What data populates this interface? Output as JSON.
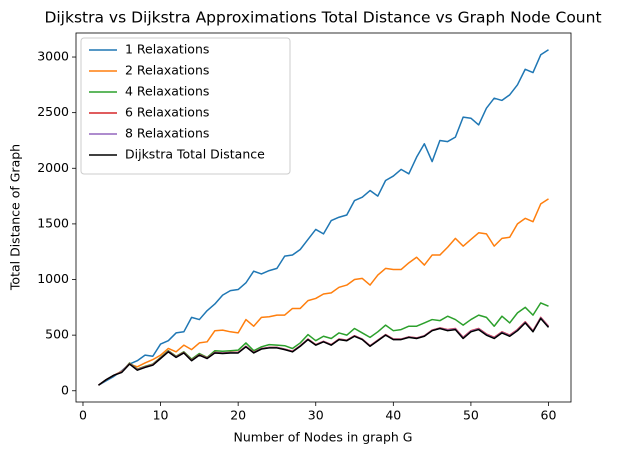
{
  "chart_data": {
    "type": "line",
    "title": "Dijkstra vs Dijkstra Approximations Total Distance vs Graph Node Count",
    "x_label": "Number of Nodes in graph G",
    "y_label": "Total Distance of Graph",
    "x": [
      2,
      3,
      4,
      5,
      6,
      7,
      8,
      9,
      10,
      11,
      12,
      13,
      14,
      15,
      16,
      17,
      18,
      19,
      20,
      21,
      22,
      23,
      24,
      25,
      26,
      27,
      28,
      29,
      30,
      31,
      32,
      33,
      34,
      35,
      36,
      37,
      38,
      39,
      40,
      41,
      42,
      43,
      44,
      45,
      46,
      47,
      48,
      49,
      50,
      51,
      52,
      53,
      54,
      55,
      56,
      57,
      58,
      59,
      60
    ],
    "series": [
      {
        "name": "1 Relaxations",
        "color": "#1f77b4",
        "values": [
          50,
          90,
          130,
          180,
          240,
          270,
          320,
          310,
          420,
          450,
          520,
          530,
          660,
          640,
          720,
          780,
          860,
          900,
          910,
          970,
          1075,
          1050,
          1080,
          1100,
          1210,
          1220,
          1270,
          1360,
          1450,
          1410,
          1530,
          1560,
          1580,
          1710,
          1740,
          1800,
          1750,
          1890,
          1930,
          1990,
          1950,
          2100,
          2220,
          2060,
          2250,
          2240,
          2280,
          2460,
          2450,
          2390,
          2540,
          2630,
          2610,
          2660,
          2750,
          2890,
          2860,
          3020,
          3065
        ]
      },
      {
        "name": "2 Relaxations",
        "color": "#ff7f0e",
        "values": [
          50,
          100,
          140,
          175,
          240,
          215,
          250,
          280,
          320,
          380,
          350,
          410,
          370,
          430,
          440,
          540,
          545,
          530,
          520,
          640,
          580,
          660,
          665,
          680,
          680,
          740,
          740,
          810,
          830,
          870,
          880,
          930,
          950,
          1000,
          1010,
          950,
          1040,
          1100,
          1090,
          1090,
          1150,
          1200,
          1130,
          1220,
          1220,
          1290,
          1370,
          1300,
          1360,
          1420,
          1410,
          1300,
          1370,
          1380,
          1500,
          1550,
          1520,
          1680,
          1725
        ]
      },
      {
        "name": "4 Relaxations",
        "color": "#2ca02c",
        "values": [
          50,
          100,
          140,
          170,
          250,
          195,
          220,
          240,
          300,
          360,
          310,
          350,
          285,
          335,
          300,
          360,
          355,
          360,
          365,
          430,
          360,
          395,
          415,
          410,
          405,
          380,
          430,
          505,
          450,
          490,
          470,
          520,
          500,
          560,
          520,
          480,
          530,
          590,
          540,
          550,
          580,
          580,
          610,
          640,
          630,
          670,
          640,
          590,
          640,
          680,
          660,
          580,
          670,
          610,
          700,
          750,
          680,
          790,
          760
        ]
      },
      {
        "name": "6 Relaxations",
        "color": "#d62728",
        "values": [
          50,
          100,
          140,
          170,
          245,
          190,
          215,
          235,
          295,
          355,
          305,
          345,
          275,
          325,
          295,
          345,
          340,
          345,
          345,
          400,
          345,
          380,
          390,
          390,
          375,
          355,
          405,
          465,
          415,
          445,
          415,
          465,
          455,
          495,
          465,
          405,
          455,
          505,
          465,
          465,
          485,
          475,
          495,
          545,
          565,
          550,
          560,
          480,
          540,
          560,
          510,
          480,
          530,
          500,
          550,
          620,
          540,
          660,
          580
        ]
      },
      {
        "name": "8 Relaxations",
        "color": "#9467bd",
        "values": [
          50,
          100,
          140,
          168,
          242,
          188,
          212,
          232,
          292,
          352,
          302,
          342,
          272,
          322,
          292,
          342,
          338,
          342,
          342,
          398,
          342,
          378,
          388,
          388,
          372,
          352,
          402,
          462,
          412,
          442,
          412,
          462,
          452,
          492,
          462,
          402,
          452,
          502,
          462,
          462,
          482,
          472,
          492,
          542,
          562,
          545,
          555,
          475,
          535,
          555,
          505,
          475,
          525,
          495,
          545,
          615,
          535,
          655,
          575
        ]
      },
      {
        "name": "Dijkstra Total Distance",
        "color": "#000000",
        "values": [
          50,
          100,
          140,
          165,
          240,
          185,
          210,
          230,
          290,
          350,
          300,
          340,
          270,
          320,
          290,
          340,
          335,
          340,
          340,
          395,
          340,
          375,
          385,
          385,
          370,
          350,
          400,
          460,
          410,
          440,
          410,
          460,
          450,
          490,
          460,
          400,
          450,
          500,
          460,
          460,
          480,
          470,
          490,
          540,
          560,
          540,
          550,
          470,
          530,
          550,
          500,
          470,
          520,
          490,
          540,
          610,
          530,
          650,
          570
        ]
      }
    ],
    "xlim": [
      -0.9,
      62.9
    ],
    "xticks": [
      0,
      10,
      20,
      30,
      40,
      50,
      60
    ],
    "ylim": [
      -101,
      3216
    ],
    "yticks": [
      0,
      500,
      1000,
      1500,
      2000,
      2500,
      3000
    ],
    "legend": "upper left"
  }
}
